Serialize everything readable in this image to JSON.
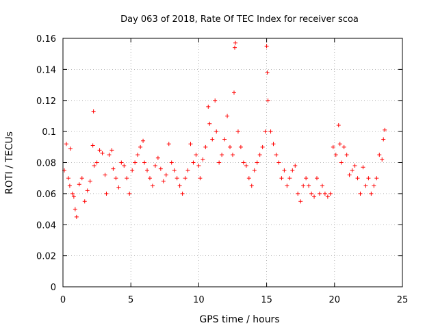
{
  "chart_data": {
    "type": "scatter",
    "title": "Day 063 of 2018, Rate Of TEC Index for receiver scoa",
    "xlabel": "GPS time / hours",
    "ylabel": "ROTI / TECUs",
    "xlim": [
      0,
      25
    ],
    "ylim": [
      0,
      0.16
    ],
    "x_ticks": [
      0,
      5,
      10,
      15,
      20,
      25
    ],
    "x_tick_labels": [
      "0",
      "5",
      "10",
      "15",
      "20",
      "25"
    ],
    "y_ticks": [
      0,
      0.02,
      0.04,
      0.06,
      0.08,
      0.1,
      0.12,
      0.14,
      0.16
    ],
    "y_tick_labels": [
      "0",
      "0.02",
      "0.04",
      "0.06",
      "0.08",
      "0.1",
      "0.12",
      "0.14",
      "0.16"
    ],
    "grid": true,
    "grid_style": "dotted",
    "marker": "+",
    "color": "#ff0000",
    "series": [
      {
        "x": [
          0.1,
          0.25,
          0.4,
          0.5,
          0.55,
          0.7,
          0.8,
          0.9,
          1.0,
          1.2,
          1.4,
          1.6,
          1.8,
          2.0,
          2.2,
          2.25,
          2.3,
          2.5,
          2.7,
          2.9,
          3.1,
          3.2,
          3.4,
          3.6,
          3.7,
          3.9,
          4.1,
          4.3,
          4.5,
          4.7,
          4.9,
          5.1,
          5.3,
          5.5,
          5.7,
          5.9,
          6.0,
          6.2,
          6.4,
          6.6,
          6.8,
          7.0,
          7.2,
          7.4,
          7.6,
          7.8,
          8.0,
          8.2,
          8.4,
          8.6,
          8.8,
          9.0,
          9.2,
          9.4,
          9.6,
          9.8,
          10.0,
          10.1,
          10.3,
          10.5,
          10.7,
          10.8,
          11.0,
          11.2,
          11.3,
          11.5,
          11.7,
          11.9,
          12.1,
          12.3,
          12.5,
          12.6,
          12.65,
          12.7,
          12.9,
          13.1,
          13.3,
          13.5,
          13.7,
          13.9,
          14.1,
          14.3,
          14.5,
          14.7,
          14.9,
          15.0,
          15.05,
          15.1,
          15.3,
          15.5,
          15.7,
          15.9,
          16.1,
          16.3,
          16.5,
          16.7,
          16.9,
          17.1,
          17.3,
          17.5,
          17.7,
          17.9,
          18.1,
          18.3,
          18.5,
          18.7,
          18.9,
          19.1,
          19.3,
          19.5,
          19.7,
          19.9,
          20.1,
          20.3,
          20.4,
          20.5,
          20.7,
          20.9,
          21.1,
          21.3,
          21.5,
          21.7,
          21.9,
          22.1,
          22.3,
          22.5,
          22.7,
          22.9,
          23.1,
          23.3,
          23.5,
          23.6,
          23.7
        ],
        "y": [
          0.075,
          0.092,
          0.07,
          0.065,
          0.089,
          0.06,
          0.058,
          0.05,
          0.045,
          0.066,
          0.07,
          0.055,
          0.062,
          0.068,
          0.091,
          0.113,
          0.078,
          0.08,
          0.088,
          0.086,
          0.072,
          0.06,
          0.085,
          0.088,
          0.076,
          0.07,
          0.064,
          0.08,
          0.078,
          0.07,
          0.06,
          0.075,
          0.08,
          0.085,
          0.09,
          0.094,
          0.08,
          0.075,
          0.07,
          0.065,
          0.078,
          0.083,
          0.076,
          0.068,
          0.072,
          0.092,
          0.08,
          0.075,
          0.07,
          0.065,
          0.06,
          0.07,
          0.075,
          0.092,
          0.08,
          0.085,
          0.078,
          0.07,
          0.082,
          0.09,
          0.116,
          0.105,
          0.095,
          0.12,
          0.1,
          0.08,
          0.085,
          0.095,
          0.11,
          0.09,
          0.085,
          0.125,
          0.154,
          0.157,
          0.1,
          0.09,
          0.08,
          0.078,
          0.07,
          0.065,
          0.075,
          0.08,
          0.085,
          0.09,
          0.1,
          0.155,
          0.138,
          0.12,
          0.1,
          0.092,
          0.085,
          0.08,
          0.07,
          0.075,
          0.065,
          0.07,
          0.075,
          0.078,
          0.06,
          0.055,
          0.065,
          0.07,
          0.065,
          0.06,
          0.058,
          0.07,
          0.06,
          0.065,
          0.06,
          0.058,
          0.06,
          0.09,
          0.085,
          0.104,
          0.092,
          0.08,
          0.09,
          0.085,
          0.072,
          0.075,
          0.078,
          0.07,
          0.06,
          0.077,
          0.065,
          0.07,
          0.06,
          0.065,
          0.07,
          0.085,
          0.082,
          0.095,
          0.101
        ]
      }
    ]
  }
}
